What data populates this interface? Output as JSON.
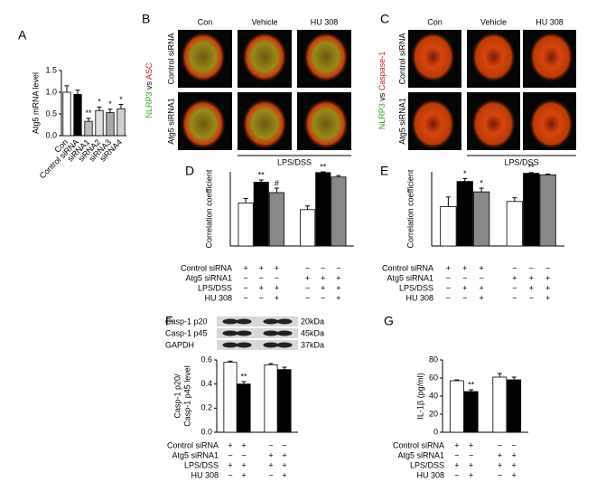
{
  "chart_data": [
    {
      "type": "bar",
      "panel": "A",
      "ylabel": [
        "Atg5 mRNA level"
      ],
      "categories": [
        "Con",
        "Control siRNA",
        "siRNA1",
        "siRNA2",
        "siRNA3",
        "siRNA4"
      ],
      "values": [
        1.0,
        0.95,
        0.33,
        0.58,
        0.53,
        0.62
      ],
      "errors": [
        0.15,
        0.1,
        0.07,
        0.08,
        0.08,
        0.1
      ],
      "annotations": [
        null,
        null,
        "**",
        "*",
        "*",
        "*"
      ],
      "colors": [
        "#ffffff",
        "#000000",
        "#bbbbbb",
        "#e0e0e0",
        "#a8a8a8",
        "#cfcfcf"
      ],
      "ylim": [
        0,
        1.5
      ],
      "yticks": [
        {
          "value": 0,
          "label": "0.0"
        },
        {
          "value": 0.5,
          "label": "0.5"
        },
        {
          "value": 1,
          "label": "1.0"
        },
        {
          "value": 1.5,
          "label": "1.5"
        }
      ]
    },
    {
      "type": "bar",
      "panel": "D",
      "ylabel": [
        "Correlation coefficient"
      ],
      "values": [
        0.58,
        0.86,
        0.72,
        0.49,
        0.99,
        0.93
      ],
      "errors": [
        0.06,
        0.03,
        0.06,
        0.05,
        0.01,
        0.02
      ],
      "annotations": [
        null,
        "**",
        "#",
        null,
        "**",
        null
      ],
      "colors": [
        "#ffffff",
        "#000000",
        "#888888",
        "#ffffff",
        "#000000",
        "#888888"
      ],
      "ylim": [
        0,
        1
      ],
      "conditions": [
        {
          "label": "Control siRNA",
          "signs": [
            "+",
            "+",
            "+",
            "−",
            "−",
            "−"
          ]
        },
        {
          "label": "Atg5 siRNA1",
          "signs": [
            "−",
            "−",
            "−",
            "+",
            "+",
            "+"
          ]
        },
        {
          "label": "LPS/DSS",
          "signs": [
            "−",
            "+",
            "+",
            "−",
            "+",
            "+"
          ]
        },
        {
          "label": "HU 308",
          "signs": [
            "−",
            "−",
            "+",
            "−",
            "−",
            "+"
          ]
        }
      ]
    },
    {
      "type": "bar",
      "panel": "E",
      "ylabel": [
        "Correlation coefficient"
      ],
      "values": [
        0.53,
        0.87,
        0.73,
        0.6,
        0.98,
        0.96
      ],
      "errors": [
        0.13,
        0.04,
        0.05,
        0.05,
        0.01,
        0.01
      ],
      "annotations": [
        null,
        "*",
        "*",
        null,
        "**",
        null
      ],
      "colors": [
        "#ffffff",
        "#000000",
        "#888888",
        "#ffffff",
        "#000000",
        "#888888"
      ],
      "ylim": [
        0,
        1
      ],
      "conditions": [
        {
          "label": "Control siRNA",
          "signs": [
            "+",
            "+",
            "+",
            "−",
            "−",
            "−"
          ]
        },
        {
          "label": "Atg5 siRNA1",
          "signs": [
            "−",
            "−",
            "−",
            "+",
            "+",
            "+"
          ]
        },
        {
          "label": "LPS/DSS",
          "signs": [
            "−",
            "+",
            "+",
            "−",
            "+",
            "+"
          ]
        },
        {
          "label": "HU 308",
          "signs": [
            "−",
            "−",
            "+",
            "−",
            "−",
            "+"
          ]
        }
      ]
    },
    {
      "type": "bar",
      "panel": "F",
      "ylabel": [
        "Casp-1 p20/",
        "Casp-1 p45 level"
      ],
      "values": [
        0.58,
        0.4,
        0.56,
        0.52
      ],
      "errors": [
        0.01,
        0.02,
        0.01,
        0.02
      ],
      "annotations": [
        null,
        "**",
        null,
        null
      ],
      "colors": [
        "#ffffff",
        "#000000",
        "#ffffff",
        "#000000"
      ],
      "ylim": [
        0,
        0.6
      ],
      "yticks": [
        {
          "value": 0,
          "label": "0.0"
        },
        0.2,
        0.4,
        0.6
      ],
      "blot": {
        "bands": [
          "Casp-1 p20",
          "Casp-1 p45",
          "GAPDH"
        ],
        "sizes": [
          "20kDa",
          "45kDa",
          "37kDa"
        ]
      },
      "conditions": [
        {
          "label": "Control siRNA",
          "signs": [
            "+",
            "+",
            "−",
            "−"
          ]
        },
        {
          "label": "Atg5 siRNA1",
          "signs": [
            "−",
            "−",
            "+",
            "+"
          ]
        },
        {
          "label": "LPS/DSS",
          "signs": [
            "+",
            "+",
            "+",
            "+"
          ]
        },
        {
          "label": "HU 308",
          "signs": [
            "−",
            "+",
            "−",
            "+"
          ]
        }
      ]
    },
    {
      "type": "bar",
      "panel": "G",
      "ylabel": [
        "IL-1β (pg/ml)"
      ],
      "values": [
        57,
        45,
        61,
        58
      ],
      "errors": [
        1,
        2,
        4,
        3
      ],
      "annotations": [
        null,
        "**",
        null,
        null
      ],
      "colors": [
        "#ffffff",
        "#000000",
        "#ffffff",
        "#000000"
      ],
      "ylim": [
        0,
        80
      ],
      "yticks": [
        0,
        20,
        40,
        60,
        80
      ],
      "conditions": [
        {
          "label": "Control siRNA",
          "signs": [
            "+",
            "+",
            "−",
            "−"
          ]
        },
        {
          "label": "Atg5 siRNA1",
          "signs": [
            "−",
            "−",
            "+",
            "+"
          ]
        },
        {
          "label": "LPS/DSS",
          "signs": [
            "+",
            "+",
            "+",
            "+"
          ]
        },
        {
          "label": "HU 308",
          "signs": [
            "−",
            "+",
            "−",
            "+"
          ]
        }
      ]
    }
  ],
  "images": [
    {
      "panel": "B",
      "columns": [
        "Con",
        "Vehicle",
        "HU 308"
      ],
      "rows": [
        "Control siRNA",
        "Atg5 siRNA1"
      ],
      "stain": {
        "first": "NLRP3",
        "joiner": " vs ",
        "second": "ASC"
      },
      "bracket": "LPS/DSS"
    },
    {
      "panel": "C",
      "columns": [
        "Con",
        "Vehicle",
        "HU 308"
      ],
      "rows": [
        "Control siRNA",
        "Atg5 siRNA1"
      ],
      "stain": {
        "first": "NLRP3",
        "joiner": " vs ",
        "second": "Caspase-1"
      },
      "bracket": "LPS/DSS"
    }
  ]
}
